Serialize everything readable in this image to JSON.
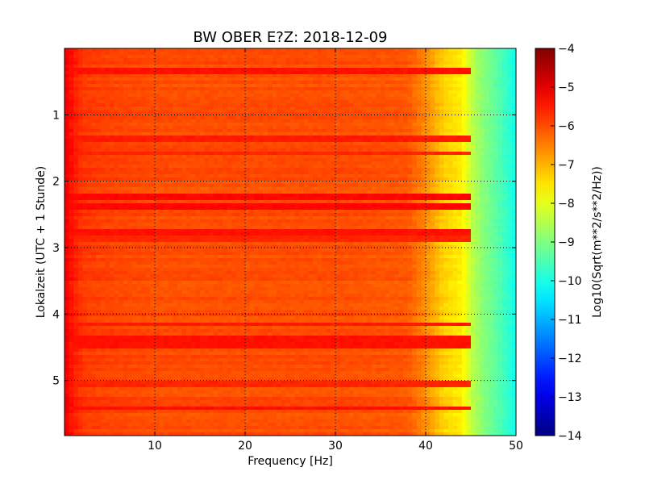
{
  "chart_data": {
    "type": "heatmap",
    "title": "BW OBER E?Z: 2018-12-09",
    "xlabel": "Frequency [Hz]",
    "ylabel": "Lokalzeit (UTC + 1 Stunde)",
    "xlim": [
      0,
      50
    ],
    "ylim": [
      0,
      5.83
    ],
    "y_inverted": true,
    "x_ticks": [
      10,
      20,
      30,
      40,
      50
    ],
    "x_tick_labels": [
      "10",
      "20",
      "30",
      "40",
      "50"
    ],
    "y_ticks": [
      1,
      2,
      3,
      4,
      5
    ],
    "y_tick_labels": [
      "1",
      "2",
      "3",
      "4",
      "5"
    ],
    "grid": "dotted",
    "colormap": "jet",
    "colorbar": {
      "label": "Log10(Sqrt(m**2/s**2/Hz))",
      "range": [
        -14,
        -4
      ],
      "ticks": [
        -4,
        -5,
        -6,
        -7,
        -8,
        -9,
        -10,
        -11,
        -12,
        -13,
        -14
      ],
      "tick_labels": [
        "−4",
        "−5",
        "−6",
        "−7",
        "−8",
        "−9",
        "−10",
        "−11",
        "−12",
        "−13",
        "−14"
      ]
    },
    "spectrum_profile": {
      "frequency_hz": [
        0,
        1,
        2,
        5,
        10,
        20,
        30,
        38,
        40,
        42,
        44,
        45,
        46,
        48,
        50
      ],
      "value": [
        -5.1,
        -5.5,
        -5.8,
        -5.9,
        -6.0,
        -6.0,
        -6.0,
        -6.1,
        -6.6,
        -7.3,
        -7.6,
        -8.3,
        -8.8,
        -9.4,
        -10.1
      ]
    },
    "strong_bands_time": [
      0.35,
      1.36,
      1.58,
      2.22,
      2.4,
      2.75,
      2.88,
      4.15,
      4.38,
      4.48,
      5.05,
      5.42
    ],
    "strong_bands_value": [
      -5.4,
      -5.5,
      -5.6,
      -5.3,
      -5.3,
      -5.4,
      -5.6,
      -5.5,
      -5.4,
      -5.4,
      -5.6,
      -5.4
    ]
  }
}
